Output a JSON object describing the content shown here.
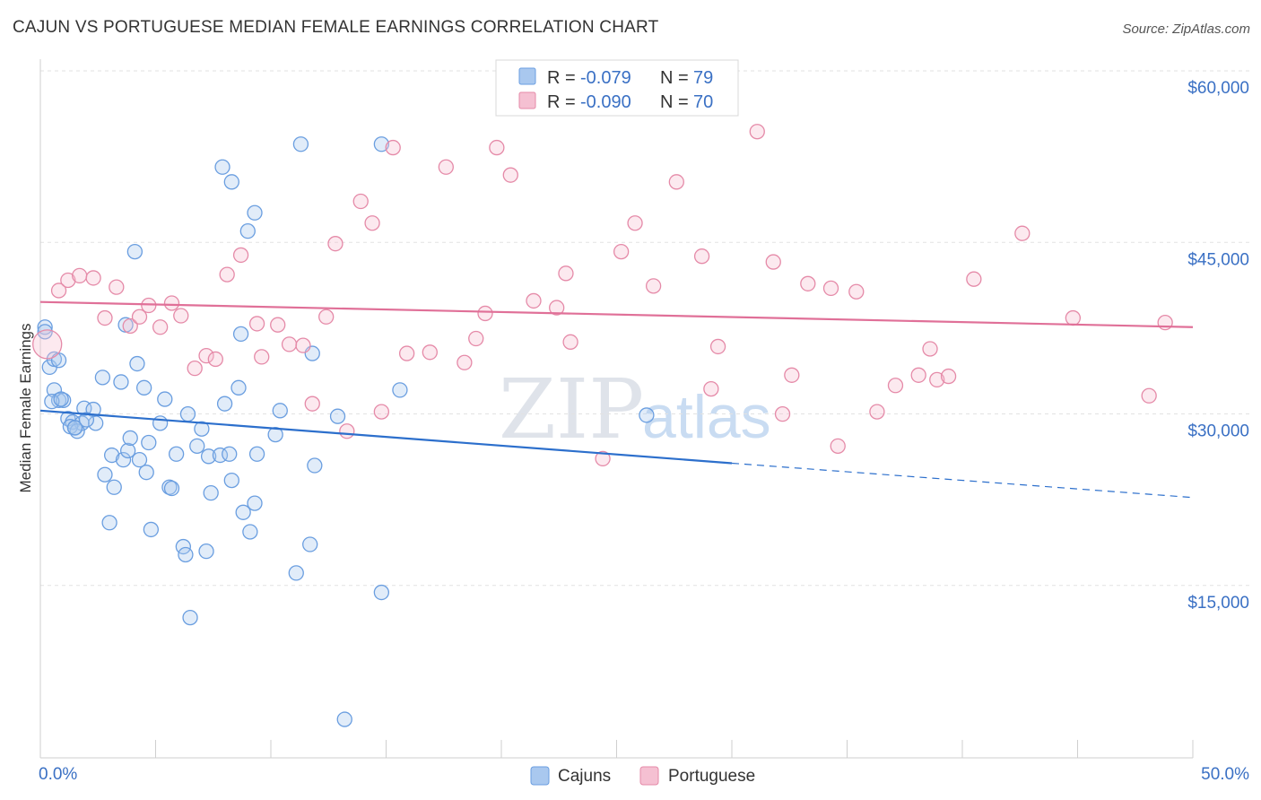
{
  "title": "CAJUN VS PORTUGUESE MEDIAN FEMALE EARNINGS CORRELATION CHART",
  "source": "Source: ZipAtlas.com",
  "watermark": {
    "zip": "ZIP",
    "atlas": "atlas"
  },
  "legend": {
    "rows": [
      {
        "r_label": "R =",
        "r_value": "-0.079",
        "n_label": "N =",
        "n_value": "79",
        "color": "#a9c8ef",
        "stroke": "#6a9ee0"
      },
      {
        "r_label": "R =",
        "r_value": "-0.090",
        "n_label": "N =",
        "n_value": "70",
        "color": "#f5c0d2",
        "stroke": "#e58aa8"
      }
    ]
  },
  "bottom_legend": {
    "cajuns": "Cajuns",
    "portuguese": "Portuguese"
  },
  "chart_data": {
    "type": "scatter",
    "xlabel": "",
    "ylabel": "Median Female Earnings",
    "xlim": [
      0,
      50
    ],
    "ylim": [
      0,
      62000
    ],
    "x_tick_labels": [
      "0.0%",
      "50.0%"
    ],
    "y_ticks": [
      {
        "value": 60000,
        "label": "$60,000"
      },
      {
        "value": 45000,
        "label": "$45,000"
      },
      {
        "value": 30000,
        "label": "$30,000"
      },
      {
        "value": 15000,
        "label": "$15,000"
      }
    ],
    "series": [
      {
        "name": "Cajuns",
        "color": "#6a9ee0",
        "fill": "rgba(169,200,239,0.35)",
        "trend": {
          "x0": 0,
          "y0": 31700,
          "x1": 30,
          "y1": 27100,
          "dash_to": 50,
          "dash_y": 24100,
          "color": "#2c6fcc"
        },
        "points": [
          [
            0.2,
            39000
          ],
          [
            0.2,
            38600
          ],
          [
            0.4,
            35500
          ],
          [
            0.6,
            36200
          ],
          [
            0.8,
            36100
          ],
          [
            0.6,
            33500
          ],
          [
            0.8,
            32600
          ],
          [
            1.0,
            32600
          ],
          [
            0.5,
            32500
          ],
          [
            1.2,
            31000
          ],
          [
            1.4,
            30700
          ],
          [
            1.8,
            30600
          ],
          [
            1.3,
            30300
          ],
          [
            1.6,
            29900
          ],
          [
            1.9,
            31900
          ],
          [
            2.3,
            31800
          ],
          [
            2.4,
            30600
          ],
          [
            1.5,
            30200
          ],
          [
            2.7,
            34600
          ],
          [
            3.5,
            34200
          ],
          [
            4.2,
            35800
          ],
          [
            4.5,
            33700
          ],
          [
            3.7,
            39200
          ],
          [
            2.8,
            26100
          ],
          [
            3.1,
            27800
          ],
          [
            3.2,
            25000
          ],
          [
            3.6,
            27400
          ],
          [
            3.8,
            28200
          ],
          [
            3.9,
            29300
          ],
          [
            4.3,
            27400
          ],
          [
            4.6,
            26300
          ],
          [
            4.7,
            28900
          ],
          [
            5.2,
            30600
          ],
          [
            5.4,
            32700
          ],
          [
            5.6,
            25000
          ],
          [
            5.7,
            24900
          ],
          [
            5.9,
            27900
          ],
          [
            6.2,
            19800
          ],
          [
            6.3,
            19100
          ],
          [
            6.4,
            31400
          ],
          [
            6.8,
            28600
          ],
          [
            7.0,
            30100
          ],
          [
            7.3,
            27700
          ],
          [
            7.4,
            24500
          ],
          [
            7.2,
            19400
          ],
          [
            7.8,
            27800
          ],
          [
            8.0,
            32300
          ],
          [
            8.2,
            27900
          ],
          [
            8.3,
            25600
          ],
          [
            8.6,
            33700
          ],
          [
            8.8,
            22800
          ],
          [
            9.1,
            21100
          ],
          [
            9.3,
            23600
          ],
          [
            8.7,
            38400
          ],
          [
            9.4,
            27900
          ],
          [
            10.2,
            29600
          ],
          [
            10.4,
            31700
          ],
          [
            11.8,
            36700
          ],
          [
            11.9,
            26900
          ],
          [
            12.9,
            31200
          ],
          [
            11.7,
            20000
          ],
          [
            11.1,
            17500
          ],
          [
            15.6,
            33500
          ],
          [
            26.3,
            31300
          ],
          [
            3.0,
            21900
          ],
          [
            4.8,
            21300
          ],
          [
            6.5,
            13600
          ],
          [
            9.0,
            47400
          ],
          [
            9.3,
            49000
          ],
          [
            8.3,
            51700
          ],
          [
            7.9,
            53000
          ],
          [
            11.3,
            55000
          ],
          [
            14.8,
            55000
          ],
          [
            4.1,
            45600
          ],
          [
            14.8,
            15800
          ],
          [
            13.2,
            4700
          ],
          [
            2.0,
            30900
          ],
          [
            1.5,
            30200
          ],
          [
            0.9,
            32700
          ]
        ]
      },
      {
        "name": "Portuguese",
        "color": "#e58aa8",
        "fill": "rgba(245,192,210,0.35)",
        "trend": {
          "x0": 0,
          "y0": 41200,
          "x1": 50,
          "y1": 39000,
          "color": "#e07098"
        },
        "points": [
          [
            0.3,
            37500
          ],
          [
            0.8,
            42200
          ],
          [
            1.2,
            43100
          ],
          [
            1.7,
            43500
          ],
          [
            2.3,
            43300
          ],
          [
            2.8,
            39800
          ],
          [
            3.3,
            42500
          ],
          [
            3.9,
            39100
          ],
          [
            4.3,
            39900
          ],
          [
            4.7,
            40900
          ],
          [
            5.2,
            39000
          ],
          [
            5.7,
            41100
          ],
          [
            6.1,
            40000
          ],
          [
            6.7,
            35400
          ],
          [
            7.2,
            36500
          ],
          [
            8.1,
            43600
          ],
          [
            8.7,
            45300
          ],
          [
            9.4,
            39300
          ],
          [
            9.6,
            36400
          ],
          [
            10.3,
            39200
          ],
          [
            10.8,
            37500
          ],
          [
            11.4,
            37400
          ],
          [
            11.8,
            32300
          ],
          [
            12.4,
            39900
          ],
          [
            12.8,
            46300
          ],
          [
            13.3,
            29900
          ],
          [
            13.9,
            50000
          ],
          [
            14.4,
            48100
          ],
          [
            14.8,
            31600
          ],
          [
            15.3,
            54700
          ],
          [
            15.9,
            36700
          ],
          [
            16.9,
            36800
          ],
          [
            17.6,
            53000
          ],
          [
            18.4,
            35900
          ],
          [
            18.9,
            38000
          ],
          [
            19.3,
            40200
          ],
          [
            19.8,
            54700
          ],
          [
            20.4,
            52300
          ],
          [
            21.4,
            41300
          ],
          [
            22.4,
            40700
          ],
          [
            22.8,
            43700
          ],
          [
            24.4,
            27500
          ],
          [
            25.2,
            45600
          ],
          [
            25.8,
            48100
          ],
          [
            26.6,
            42600
          ],
          [
            27.6,
            51700
          ],
          [
            28.7,
            45200
          ],
          [
            29.1,
            33600
          ],
          [
            29.4,
            37300
          ],
          [
            31.1,
            56100
          ],
          [
            31.8,
            44700
          ],
          [
            32.2,
            31400
          ],
          [
            32.6,
            34800
          ],
          [
            33.3,
            42800
          ],
          [
            34.3,
            42400
          ],
          [
            34.6,
            28600
          ],
          [
            35.4,
            42100
          ],
          [
            36.3,
            31600
          ],
          [
            37.1,
            33900
          ],
          [
            38.1,
            34800
          ],
          [
            38.6,
            37100
          ],
          [
            38.9,
            34400
          ],
          [
            39.4,
            34700
          ],
          [
            40.5,
            43200
          ],
          [
            42.6,
            47200
          ],
          [
            44.8,
            39800
          ],
          [
            48.1,
            33000
          ],
          [
            48.8,
            39400
          ],
          [
            23.0,
            37700
          ],
          [
            7.6,
            36200
          ]
        ]
      }
    ]
  }
}
